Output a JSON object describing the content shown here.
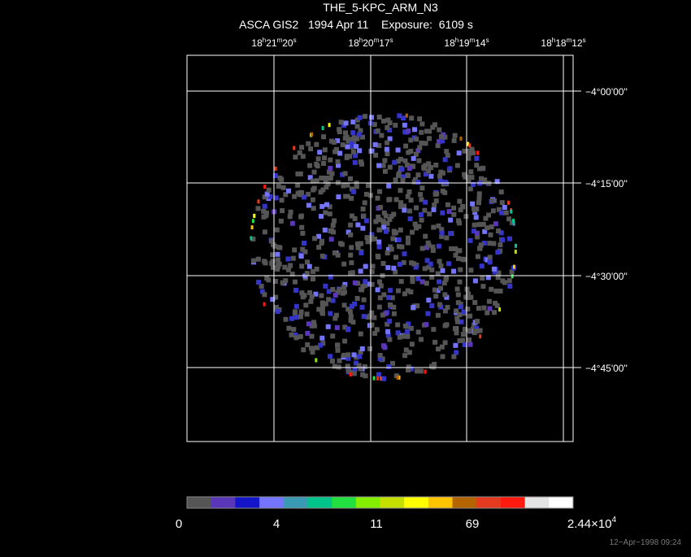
{
  "header": {
    "title": "THE_5-KPC_ARM_N3",
    "subtitle": "ASCA GIS2   1994 Apr 11    Exposure:  6109 s"
  },
  "image": {
    "ra_labels": [
      [
        "18",
        "h",
        "21",
        "m",
        "20",
        "s"
      ],
      [
        "18",
        "h",
        "20",
        "m",
        "17",
        "s"
      ],
      [
        "18",
        "h",
        "19",
        "m",
        "14",
        "s"
      ],
      [
        "18",
        "h",
        "18",
        "m",
        "12",
        "s"
      ]
    ],
    "dec_labels": [
      "−4°00'00\"",
      "−4°15'00\"",
      "−4°30'00\"",
      "−4°45'00\""
    ]
  },
  "colorbar": {
    "colors": [
      "#555555",
      "#5a36b8",
      "#1414c8",
      "#7474ff",
      "#3a9ab4",
      "#00c48a",
      "#22e040",
      "#84f000",
      "#c4e000",
      "#ffff00",
      "#ffc400",
      "#b46400",
      "#e43a20",
      "#ff1a10",
      "#e4e4e4",
      "#ffffff"
    ],
    "labels": [
      [
        "0"
      ],
      [
        "4"
      ],
      [
        "11"
      ],
      [
        "69"
      ],
      [
        "2.44×10",
        "4"
      ]
    ]
  },
  "footer": {
    "timestamp": "12−Apr−1998 09:24"
  }
}
